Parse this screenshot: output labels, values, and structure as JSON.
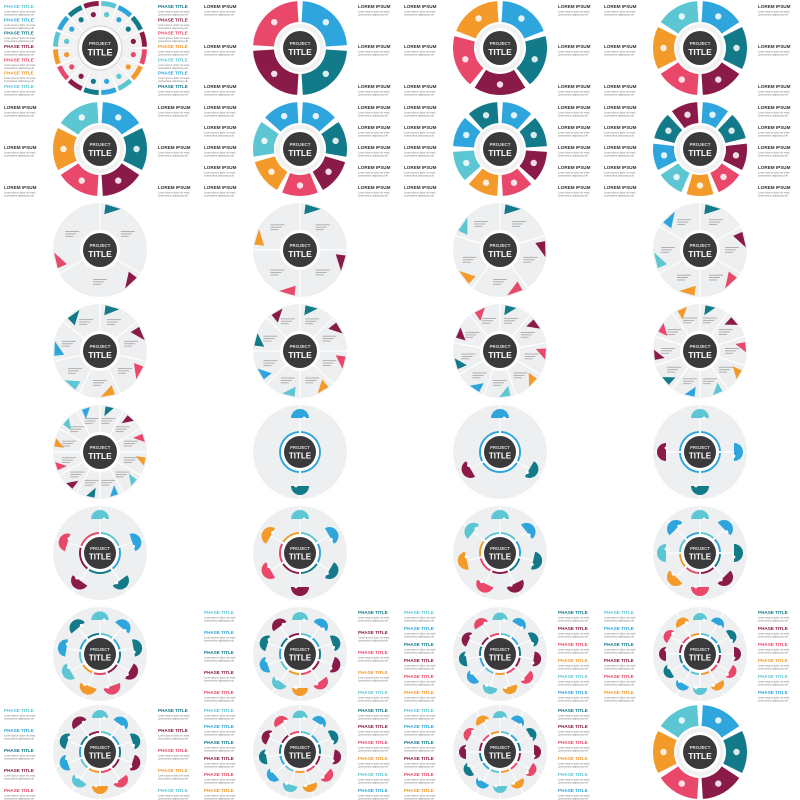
{
  "text": {
    "center_small": "PROJECT",
    "center_big": "TITLE",
    "phase_heading": "PHASE TITLE",
    "lorem_heading": "LOREM IPSUM",
    "body_line1": "Lorem ipsum dolor sit amet,",
    "body_line2": "consectetur adipiscing elit"
  },
  "colors": {
    "palette": [
      "#5cc6d3",
      "#2ea6dd",
      "#127a89",
      "#8a1a48",
      "#e9486a",
      "#f39a2b"
    ],
    "center": "#3a3a3c",
    "disc": "#edeff1"
  },
  "thumbnails": [
    {
      "style": "thin-ring",
      "segments": 16,
      "labels": "phase"
    },
    {
      "style": "ring",
      "segments": 4,
      "labels": "lorem"
    },
    {
      "style": "ring",
      "segments": 5,
      "labels": "lorem"
    },
    {
      "style": "ring",
      "segments": 6,
      "labels": "lorem"
    },
    {
      "style": "ring",
      "segments": 6,
      "labels": "lorem"
    },
    {
      "style": "ring",
      "segments": 7,
      "labels": "lorem"
    },
    {
      "style": "ring",
      "segments": 8,
      "labels": "lorem"
    },
    {
      "style": "ring",
      "segments": 9,
      "labels": "lorem"
    },
    {
      "style": "wheel",
      "segments": 3,
      "labels": "none"
    },
    {
      "style": "wheel",
      "segments": 4,
      "labels": "none"
    },
    {
      "style": "wheel",
      "segments": 5,
      "labels": "none"
    },
    {
      "style": "wheel",
      "segments": 6,
      "labels": "none"
    },
    {
      "style": "wheel",
      "segments": 7,
      "labels": "none"
    },
    {
      "style": "wheel",
      "segments": 8,
      "labels": "none"
    },
    {
      "style": "wheel",
      "segments": 9,
      "labels": "none"
    },
    {
      "style": "wheel",
      "segments": 10,
      "labels": "none"
    },
    {
      "style": "wheel",
      "segments": 12,
      "labels": "none"
    },
    {
      "style": "petals",
      "segments": 2,
      "labels": "none"
    },
    {
      "style": "petals",
      "segments": 3,
      "labels": "none"
    },
    {
      "style": "petals",
      "segments": 4,
      "labels": "none"
    },
    {
      "style": "petals",
      "segments": 5,
      "labels": "none"
    },
    {
      "style": "petals",
      "segments": 6,
      "labels": "none"
    },
    {
      "style": "petals",
      "segments": 7,
      "labels": "none"
    },
    {
      "style": "petals",
      "segments": 8,
      "labels": "none"
    },
    {
      "style": "petals",
      "segments": 9,
      "labels": "none"
    },
    {
      "style": "petals",
      "segments": 10,
      "labels": "phase"
    },
    {
      "style": "petals",
      "segments": 11,
      "labels": "phase"
    },
    {
      "style": "petals",
      "segments": 12,
      "labels": "phase"
    },
    {
      "style": "petals",
      "segments": 10,
      "labels": "phase"
    },
    {
      "style": "petals",
      "segments": 11,
      "labels": "phase"
    },
    {
      "style": "petals",
      "segments": 12,
      "labels": "phase"
    },
    {
      "style": "ring",
      "segments": 6,
      "labels": "none"
    }
  ]
}
